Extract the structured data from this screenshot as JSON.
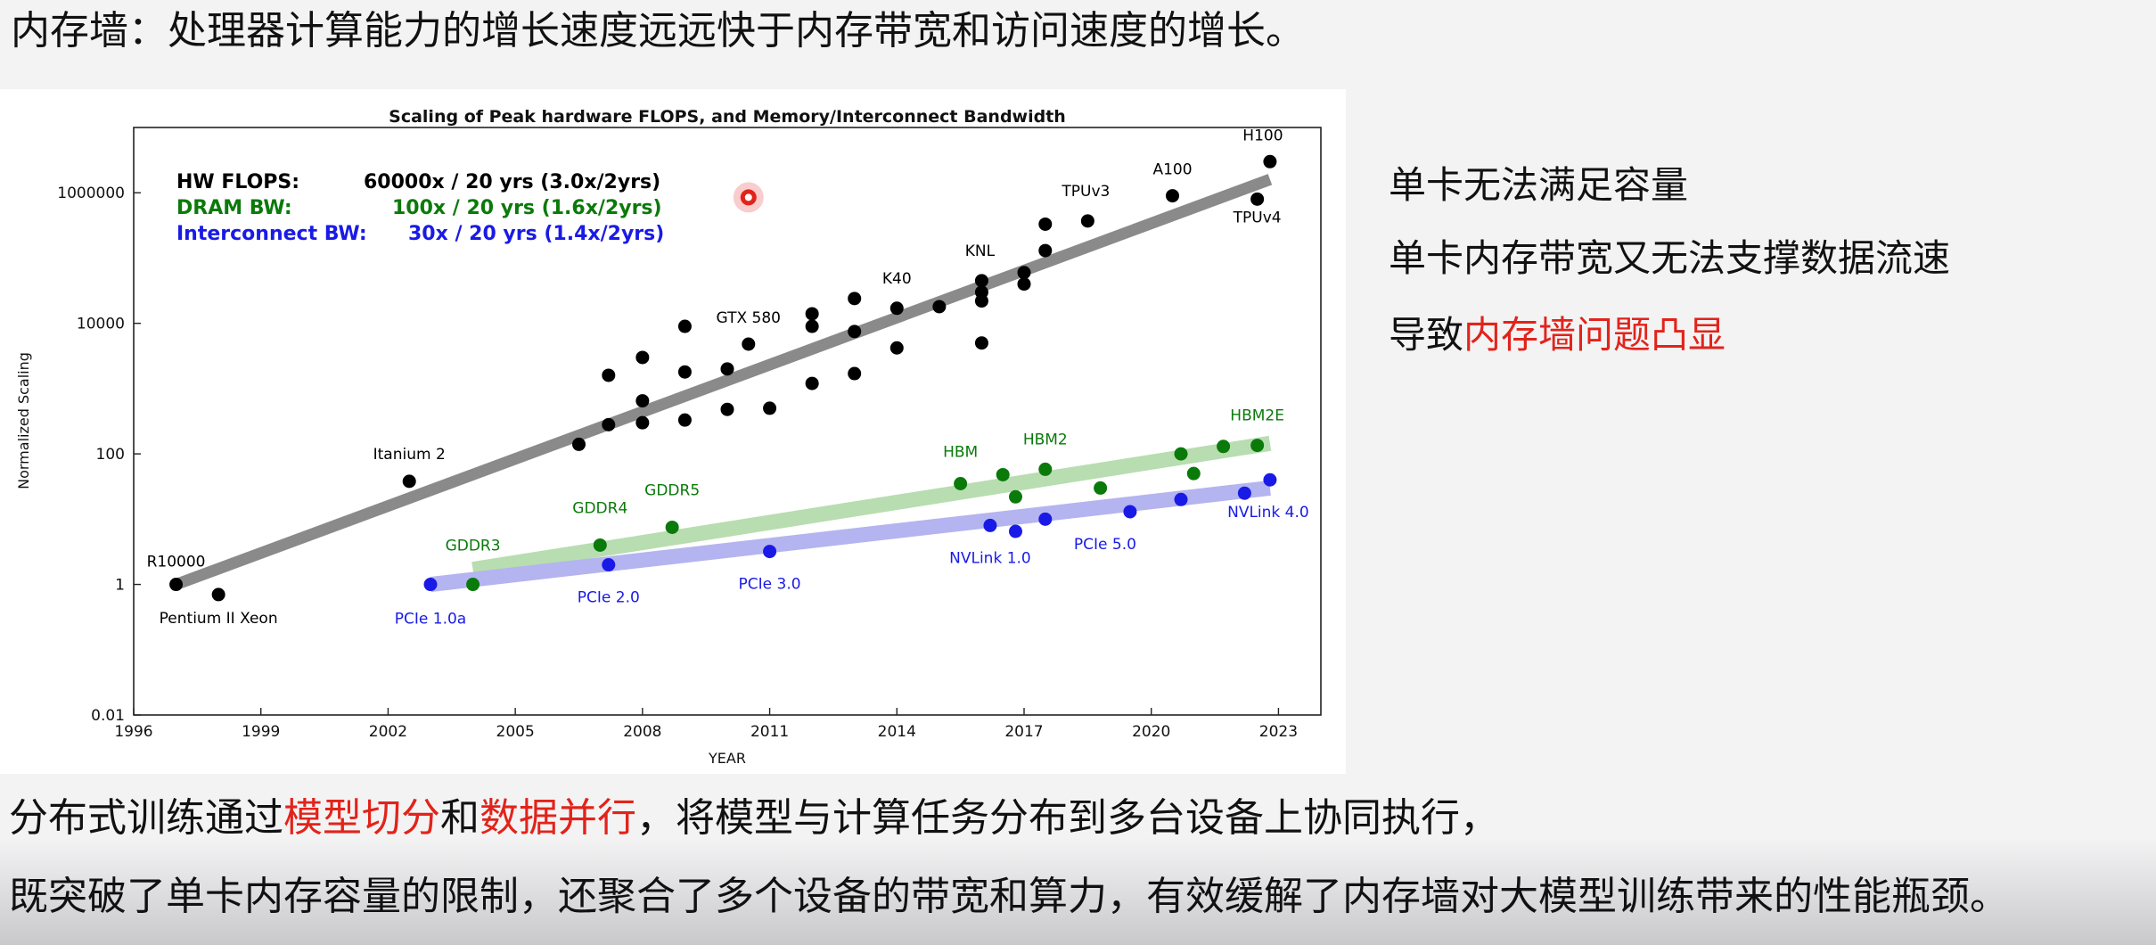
{
  "header": {
    "title": "内存墙：处理器计算能力的增长速度远远快于内存带宽和访问速度的增长。"
  },
  "bullets": {
    "item1": "单卡无法满足容量",
    "item2": "单卡内存带宽又无法支撑数据流速",
    "item3_prefix": "导致",
    "item3_highlight": "内存墙问题凸显"
  },
  "paragraph": {
    "line1_a": "分布式训练通过",
    "line1_hl1": "模型切分",
    "line1_b": "和",
    "line1_hl2": "数据并行",
    "line1_c": "，将模型与计算任务分布到多台设备上协同执行，",
    "line2": "既突破了单卡内存容量的限制，还聚合了多个设备的带宽和算力，有效缓解了内存墙对大模型训练带来的性能瓶颈。"
  },
  "colors": {
    "highlight": "#e2231a",
    "flops": "#000000",
    "dram": "#0a7a0a",
    "interconnect": "#1a1ae6",
    "flops_trend": "#8a8a8a",
    "dram_trend": "#b8ddb0",
    "interconnect_trend": "#b4b4f0"
  },
  "chart_data": {
    "type": "scatter",
    "title": "Scaling of Peak hardware FLOPS, and Memory/Interconnect Bandwidth",
    "xlabel": "YEAR",
    "ylabel": "Normalized Scaling",
    "xlim": [
      1996,
      2024
    ],
    "ylim": [
      0.01,
      10000000
    ],
    "yscale": "log",
    "xticks": [
      1996,
      1999,
      2002,
      2005,
      2008,
      2011,
      2014,
      2017,
      2020,
      2023
    ],
    "yticks": [
      0.01,
      1,
      100,
      10000,
      1000000
    ],
    "ytick_labels": [
      "0.01",
      "1",
      "100",
      "10000",
      "1000000"
    ],
    "legend": [
      {
        "name": "HW FLOPS:",
        "summary": "60000x / 20 yrs (3.0x/2yrs)",
        "color": "#000000"
      },
      {
        "name": "DRAM BW:",
        "summary": "100x / 20 yrs (1.6x/2yrs)",
        "color": "#0a7a0a"
      },
      {
        "name": "Interconnect BW:",
        "summary": "30x / 20 yrs (1.4x/2yrs)",
        "color": "#1a1ae6"
      }
    ],
    "series": [
      {
        "name": "HW FLOPS",
        "color": "#000000",
        "trend": [
          [
            1997,
            1
          ],
          [
            2022.8,
            1600000
          ]
        ],
        "points": [
          {
            "x": 1997,
            "y": 1,
            "label": "R10000",
            "lx": 0,
            "ly": -20
          },
          {
            "x": 1998,
            "y": 0.7,
            "label": "Pentium II Xeon",
            "lx": 0,
            "ly": 32
          },
          {
            "x": 2002.5,
            "y": 38,
            "label": "Itanium 2",
            "lx": 0,
            "ly": -25
          },
          {
            "x": 2006.5,
            "y": 140
          },
          {
            "x": 2007.2,
            "y": 280
          },
          {
            "x": 2007.2,
            "y": 1600
          },
          {
            "x": 2008,
            "y": 300
          },
          {
            "x": 2008,
            "y": 650
          },
          {
            "x": 2008,
            "y": 3000
          },
          {
            "x": 2009,
            "y": 330
          },
          {
            "x": 2009,
            "y": 1800
          },
          {
            "x": 2009,
            "y": 9000
          },
          {
            "x": 2010,
            "y": 480
          },
          {
            "x": 2010,
            "y": 2000
          },
          {
            "x": 2010.5,
            "y": 4800,
            "label": "GTX 580",
            "lx": 0,
            "ly": -24
          },
          {
            "x": 2011,
            "y": 500
          },
          {
            "x": 2012,
            "y": 1200
          },
          {
            "x": 2012,
            "y": 9000
          },
          {
            "x": 2012,
            "y": 14000
          },
          {
            "x": 2013,
            "y": 1700
          },
          {
            "x": 2013,
            "y": 7500
          },
          {
            "x": 2013,
            "y": 24000
          },
          {
            "x": 2014,
            "y": 4200
          },
          {
            "x": 2014,
            "y": 17000,
            "label": "K40",
            "lx": 0,
            "ly": -28
          },
          {
            "x": 2015,
            "y": 18000
          },
          {
            "x": 2016,
            "y": 5000
          },
          {
            "x": 2016,
            "y": 22000
          },
          {
            "x": 2016,
            "y": 30000
          },
          {
            "x": 2016,
            "y": 45000,
            "label": "KNL",
            "lx": -2,
            "ly": -28
          },
          {
            "x": 2017,
            "y": 40000
          },
          {
            "x": 2017,
            "y": 60000
          },
          {
            "x": 2017.5,
            "y": 130000
          },
          {
            "x": 2017.5,
            "y": 330000
          },
          {
            "x": 2018.5,
            "y": 370000,
            "label": "TPUv3",
            "lx": -2,
            "ly": -28
          },
          {
            "x": 2020.5,
            "y": 900000,
            "label": "A100",
            "lx": 0,
            "ly": -24
          },
          {
            "x": 2022.5,
            "y": 800000,
            "label": "TPUv4",
            "lx": 0,
            "ly": 26
          },
          {
            "x": 2022.8,
            "y": 3000000,
            "label": "H100",
            "lx": -8,
            "ly": -24
          }
        ]
      },
      {
        "name": "DRAM BW",
        "color": "#0a7a0a",
        "trend": [
          [
            2004,
            1.7
          ],
          [
            2022.8,
            145
          ]
        ],
        "points": [
          {
            "x": 2004,
            "y": 1,
            "label": "GDDR3",
            "lx": 0,
            "ly": -38
          },
          {
            "x": 2007,
            "y": 4,
            "label": "GDDR4",
            "lx": 0,
            "ly": -36
          },
          {
            "x": 2008.7,
            "y": 7.5,
            "label": "GDDR5",
            "lx": 0,
            "ly": -36
          },
          {
            "x": 2015.5,
            "y": 35,
            "label": "HBM",
            "lx": 0,
            "ly": -30
          },
          {
            "x": 2016.5,
            "y": 48
          },
          {
            "x": 2016.8,
            "y": 22
          },
          {
            "x": 2017.5,
            "y": 58,
            "label": "HBM2",
            "lx": 0,
            "ly": -28
          },
          {
            "x": 2018.8,
            "y": 30
          },
          {
            "x": 2020.7,
            "y": 100
          },
          {
            "x": 2021,
            "y": 50
          },
          {
            "x": 2021.7,
            "y": 130
          },
          {
            "x": 2022.5,
            "y": 135,
            "label": "HBM2E",
            "lx": 0,
            "ly": -28
          }
        ]
      },
      {
        "name": "Interconnect BW",
        "color": "#1a1ae6",
        "trend": [
          [
            2003,
            1
          ],
          [
            2022.8,
            30
          ]
        ],
        "points": [
          {
            "x": 2003,
            "y": 1,
            "label": "PCIe 1.0a",
            "lx": 0,
            "ly": 44
          },
          {
            "x": 2007.2,
            "y": 2,
            "label": "PCIe 2.0",
            "lx": 0,
            "ly": 42
          },
          {
            "x": 2011,
            "y": 3.2,
            "label": "PCIe 3.0",
            "lx": 0,
            "ly": 42
          },
          {
            "x": 2016.2,
            "y": 8,
            "label": "NVLink 1.0",
            "lx": 0,
            "ly": 42
          },
          {
            "x": 2016.8,
            "y": 6.5
          },
          {
            "x": 2017.5,
            "y": 10
          },
          {
            "x": 2019.5,
            "y": 13,
            "label": "PCIe 5.0",
            "lx": -28,
            "ly": 42
          },
          {
            "x": 2020.7,
            "y": 20
          },
          {
            "x": 2022.2,
            "y": 25
          },
          {
            "x": 2022.8,
            "y": 40,
            "label": "NVLink 4.0",
            "lx": -2,
            "ly": 42
          }
        ]
      }
    ],
    "annotation_marker": {
      "x": 2010.5,
      "y": 850000,
      "color": "#e2231a"
    }
  }
}
